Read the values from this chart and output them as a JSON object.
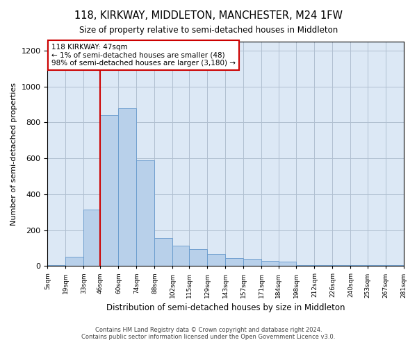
{
  "title": "118, KIRKWAY, MIDDLETON, MANCHESTER, M24 1FW",
  "subtitle": "Size of property relative to semi-detached houses in Middleton",
  "xlabel": "Distribution of semi-detached houses by size in Middleton",
  "ylabel": "Number of semi-detached properties",
  "annotation_title": "118 KIRKWAY: 47sqm",
  "annotation_line1": "← 1% of semi-detached houses are smaller (48)",
  "annotation_line2": "98% of semi-detached houses are larger (3,180) →",
  "footer1": "Contains HM Land Registry data © Crown copyright and database right 2024.",
  "footer2": "Contains public sector information licensed under the Open Government Licence v3.0.",
  "property_line_x": 46,
  "bar_edges": [
    5,
    19,
    33,
    46,
    60,
    74,
    88,
    102,
    115,
    129,
    143,
    157,
    171,
    184,
    198,
    212,
    226,
    240,
    253,
    267,
    281
  ],
  "bar_labels": [
    "5sqm",
    "19sqm",
    "33sqm",
    "46sqm",
    "60sqm",
    "74sqm",
    "88sqm",
    "102sqm",
    "115sqm",
    "129sqm",
    "143sqm",
    "157sqm",
    "171sqm",
    "184sqm",
    "198sqm",
    "212sqm",
    "226sqm",
    "240sqm",
    "253sqm",
    "267sqm",
    "281sqm"
  ],
  "bar_heights": [
    5,
    50,
    315,
    840,
    880,
    590,
    155,
    115,
    95,
    65,
    45,
    40,
    30,
    25,
    5,
    5,
    5,
    5,
    5,
    5
  ],
  "bar_color": "#b8d0ea",
  "bar_edge_color": "#6699cc",
  "property_line_color": "#cc0000",
  "annotation_box_color": "#cc0000",
  "background_color": "#ffffff",
  "axes_facecolor": "#dce8f5",
  "grid_color": "#b0bfd0",
  "ylim": [
    0,
    1250
  ],
  "yticks": [
    0,
    200,
    400,
    600,
    800,
    1000,
    1200
  ]
}
